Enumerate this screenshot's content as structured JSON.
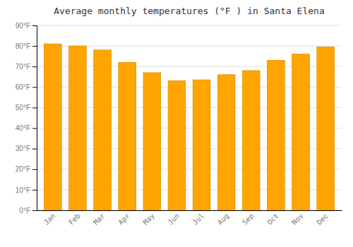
{
  "chart_data": {
    "type": "bar",
    "title": "Average monthly temperatures (°F ) in Santa Elena",
    "categories": [
      "Jan",
      "Feb",
      "Mar",
      "Apr",
      "May",
      "Jun",
      "Jul",
      "Aug",
      "Sep",
      "Oct",
      "Nov",
      "Dec"
    ],
    "values": [
      81,
      80,
      78,
      72,
      67,
      63,
      63.5,
      66,
      68,
      73,
      76,
      79.5
    ],
    "color": "#FFA500",
    "ylim": [
      0,
      90
    ],
    "yticks": [
      {
        "value": 0,
        "label": "0°F"
      },
      {
        "value": 10,
        "label": "10°F"
      },
      {
        "value": 20,
        "label": "20°F"
      },
      {
        "value": 30,
        "label": "30°F"
      },
      {
        "value": 40,
        "label": "40°F"
      },
      {
        "value": 50,
        "label": "50°F"
      },
      {
        "value": 60,
        "label": "60°F"
      },
      {
        "value": 70,
        "label": "70°F"
      },
      {
        "value": 80,
        "label": "80°F"
      },
      {
        "value": 90,
        "label": "90°F"
      }
    ],
    "grid": true
  }
}
